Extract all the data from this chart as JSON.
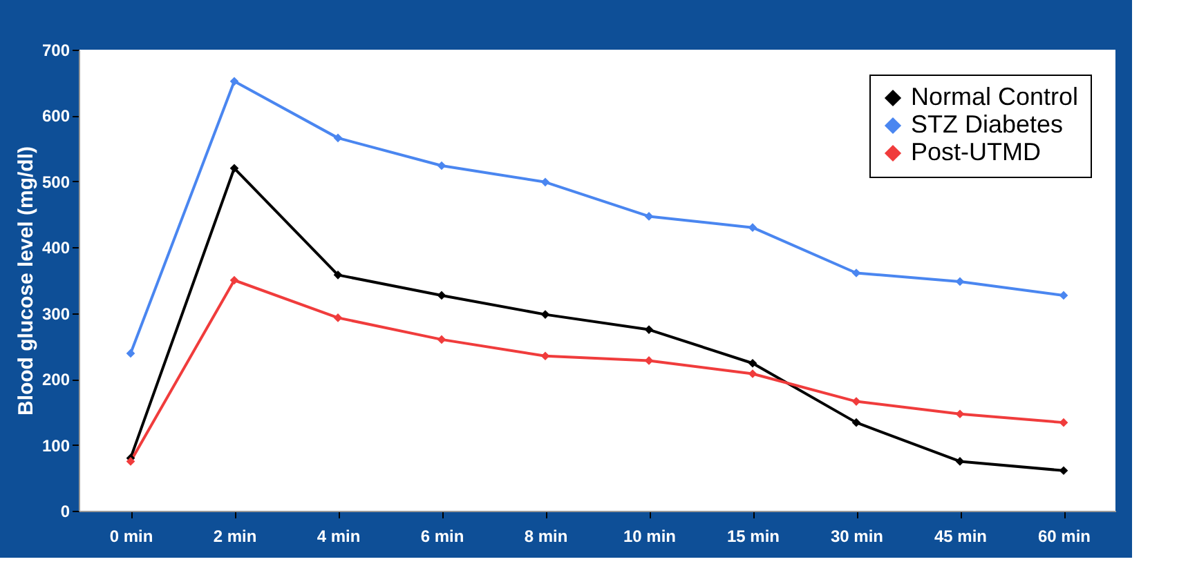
{
  "chart_data": {
    "type": "line",
    "ylabel": "Blood glucose level (mg/dl)",
    "categories": [
      "0 min",
      "2 min",
      "4 min",
      "6 min",
      "8 min",
      "10 min",
      "15 min",
      "30 min",
      "45 min",
      "60 min"
    ],
    "series": [
      {
        "name": "Normal Control",
        "color": "#000000",
        "values": [
          80,
          520,
          358,
          327,
          298,
          275,
          224,
          134,
          75,
          61
        ]
      },
      {
        "name": "STZ Diabetes",
        "color": "#4a86f0",
        "values": [
          239,
          652,
          566,
          524,
          499,
          447,
          430,
          361,
          348,
          327
        ]
      },
      {
        "name": "Post-UTMD",
        "color": "#f03c3c",
        "values": [
          75,
          350,
          293,
          260,
          235,
          228,
          208,
          166,
          147,
          134
        ]
      }
    ],
    "ylim": [
      0,
      700
    ],
    "yticks": [
      0,
      100,
      200,
      300,
      400,
      500,
      600,
      700
    ],
    "grid": false,
    "legend": "top right",
    "marker": "diamond",
    "line_style": "solid"
  }
}
